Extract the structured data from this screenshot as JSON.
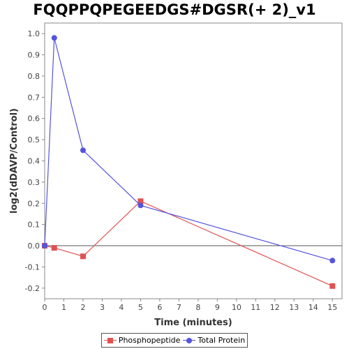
{
  "chart_data": {
    "type": "line",
    "title": "FQQPPQPEGEEDGS#DGSR(+ 2)_v1",
    "xlabel": "Time (minutes)",
    "ylabel": "log2(dDAVP/Control)",
    "xlim": [
      0,
      15.5
    ],
    "ylim": [
      -0.25,
      1.05
    ],
    "x_ticks": [
      "0",
      "1",
      "2",
      "3",
      "4",
      "5",
      "6",
      "7",
      "8",
      "9",
      "10",
      "11",
      "12",
      "13",
      "14",
      "15"
    ],
    "y_ticks": [
      "-0.2",
      "-0.1",
      "0.0",
      "0.1",
      "0.2",
      "0.3",
      "0.4",
      "0.5",
      "0.6",
      "0.7",
      "0.8",
      "0.9",
      "1.0"
    ],
    "grid": false,
    "legend_position": "bottom",
    "series": [
      {
        "name": "Phosphopeptide",
        "color": "#e05252",
        "marker": "square",
        "x": [
          0,
          0.5,
          2,
          5,
          15
        ],
        "y": [
          0.0,
          -0.01,
          -0.05,
          0.21,
          -0.19
        ]
      },
      {
        "name": "Total Protein",
        "color": "#5454e0",
        "marker": "circle",
        "x": [
          0,
          0.5,
          2,
          5,
          15
        ],
        "y": [
          0.0,
          0.98,
          0.45,
          0.19,
          -0.07
        ]
      }
    ]
  }
}
